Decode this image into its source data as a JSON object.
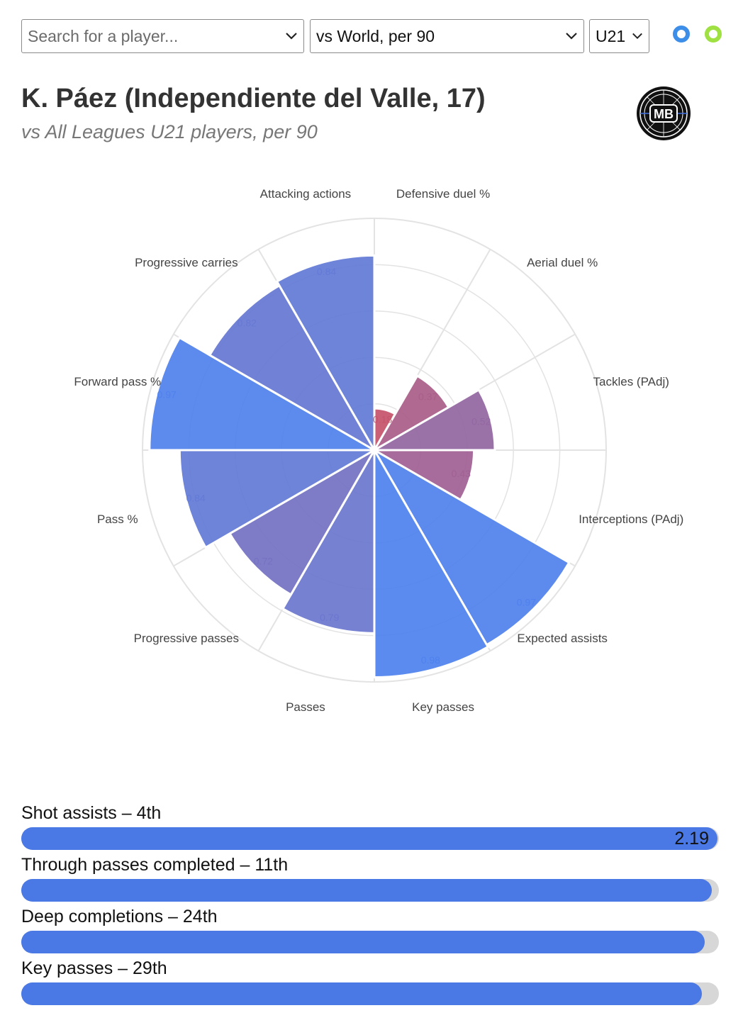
{
  "controls": {
    "search_placeholder": "Search for a player...",
    "comparison": "vs World, per 90",
    "age_group": "U21"
  },
  "colors": {
    "accent": "#4a78e4",
    "toggle_blue": "#3d8ee8",
    "toggle_green": "#9fe042",
    "low": "#e0474c",
    "high": "#4a82f0"
  },
  "header": {
    "title": "K. Páez (Independiente del Valle, 17)",
    "subtitle": "vs All Leagues U21 players, per 90",
    "logo_text": "MB"
  },
  "chart_data": {
    "type": "polar-bar",
    "title": "K. Páez (Independiente del Valle, 17)",
    "subtitle": "vs All Leagues U21 players, per 90",
    "range": [
      0,
      1
    ],
    "grid_rings": [
      0.2,
      0.4,
      0.6,
      0.8,
      1.0
    ],
    "categories": [
      "Defensive duel %",
      "Aerial duel %",
      "Tackles (PAdj)",
      "Interceptions (PAdj)",
      "Expected assists",
      "Key passes",
      "Passes",
      "Progressive passes",
      "Pass %",
      "Forward pass %",
      "Progressive carries",
      "Attacking actions"
    ],
    "values": [
      0.18,
      0.37,
      0.52,
      0.43,
      0.97,
      0.98,
      0.79,
      0.72,
      0.84,
      0.97,
      0.82,
      0.84
    ],
    "value_labels": [
      "0.18",
      "0.37",
      "0.52",
      "0.43",
      "0.97",
      "0.98",
      "0.79",
      "0.72",
      "0.84",
      "0.97",
      "0.82",
      "0.84"
    ]
  },
  "stats": [
    {
      "label": "Shot assists – 4th",
      "fraction": 0.998,
      "value": "2.19"
    },
    {
      "label": "Through passes completed – 11th",
      "fraction": 0.99,
      "value": ""
    },
    {
      "label": "Deep completions – 24th",
      "fraction": 0.98,
      "value": ""
    },
    {
      "label": "Key passes – 29th",
      "fraction": 0.976,
      "value": ""
    }
  ]
}
